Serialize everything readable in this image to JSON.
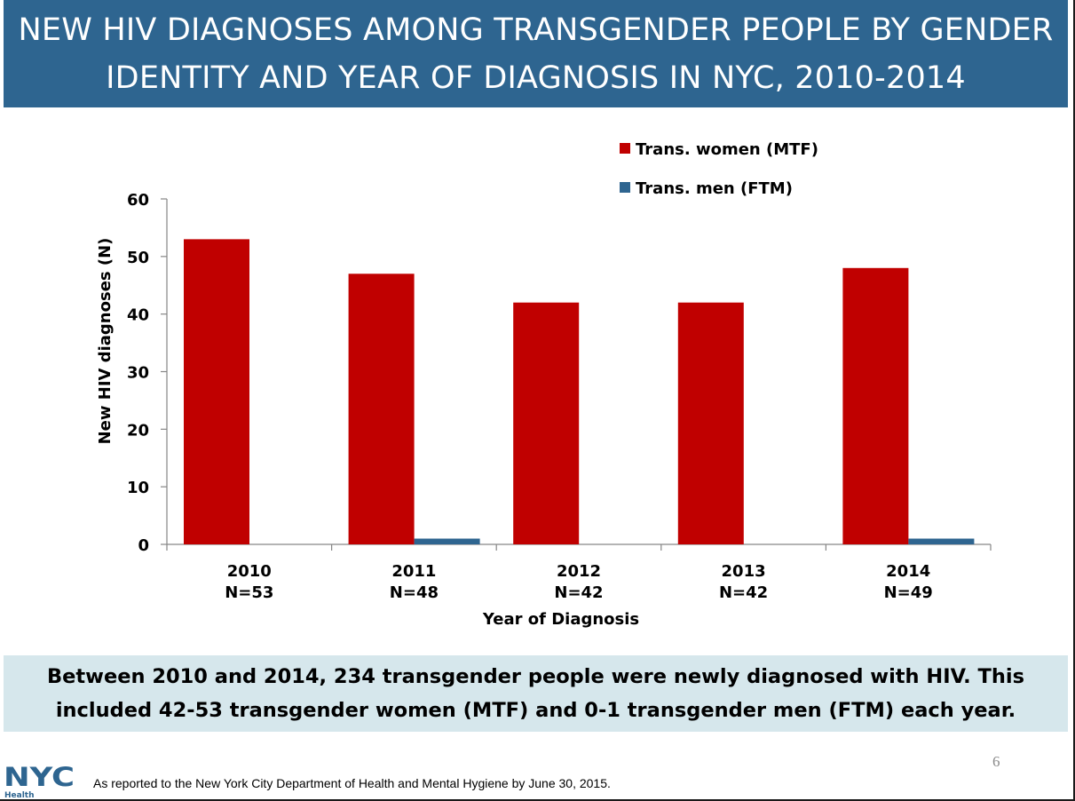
{
  "slide": {
    "title_line1": "NEW HIV DIAGNOSES AMONG TRANSGENDER PEOPLE BY GENDER",
    "title_line2": "IDENTITY AND YEAR OF DIAGNOSIS IN NYC, 2010-2014",
    "summary_line1": "Between 2010 and 2014, 234 transgender people were newly diagnosed with HIV.  This",
    "summary_line2": "included 42-53 transgender women (MTF) and 0-1 transgender men (FTM) each year.",
    "page_number": "6",
    "source_note": "As reported to the New York City Department of Health and Mental Hygiene by June 30, 2015.",
    "logo_text": "NYC",
    "logo_subtext": "Health"
  },
  "colors": {
    "title_bg": "#2e6590",
    "mtf": "#c00000",
    "ftm": "#2e6590",
    "summary_bg": "#d6e7ec"
  },
  "chart_data": {
    "type": "bar",
    "categories": [
      "2010",
      "2011",
      "2012",
      "2013",
      "2014"
    ],
    "category_sublabels": [
      "N=53",
      "N=48",
      "N=42",
      "N=42",
      "N=49"
    ],
    "series": [
      {
        "name": "Trans. women (MTF)",
        "values": [
          53,
          47,
          42,
          42,
          48
        ]
      },
      {
        "name": "Trans. men (FTM)",
        "values": [
          0,
          1,
          0,
          0,
          1
        ]
      }
    ],
    "title": "",
    "xlabel": "Year of Diagnosis",
    "ylabel": "New HIV diagnoses (N)",
    "ylim": [
      0,
      60
    ],
    "yticks": [
      "0",
      "10",
      "20",
      "30",
      "40",
      "50",
      "60"
    ],
    "legend_position": "top-right",
    "grid": false
  }
}
